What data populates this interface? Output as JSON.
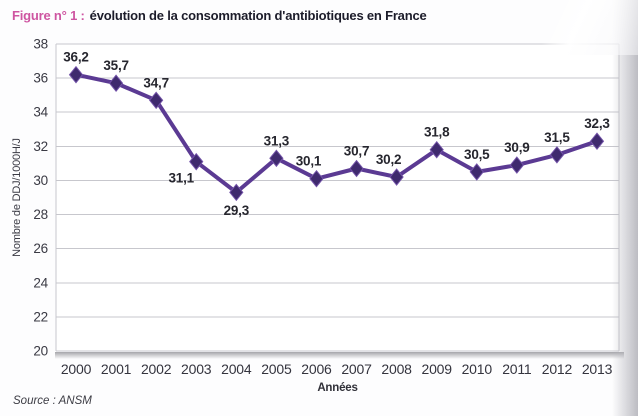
{
  "page": {
    "figure_label": "Figure n° 1 :",
    "figure_title": "évolution de la consommation d'antibiotiques en France",
    "source": "Source : ANSM"
  },
  "chart_data": {
    "type": "line",
    "title": "Figure n° 1 : évolution de la consommation d'antibiotiques en France",
    "xlabel": "Années",
    "ylabel": "Nombre de DDJ/1000H/J",
    "categories": [
      "2000",
      "2001",
      "2002",
      "2003",
      "2004",
      "2005",
      "2006",
      "2007",
      "2008",
      "2009",
      "2010",
      "2011",
      "2012",
      "2013"
    ],
    "values": [
      36.2,
      35.7,
      34.7,
      31.1,
      29.3,
      31.3,
      30.1,
      30.7,
      30.2,
      31.8,
      30.5,
      30.9,
      31.5,
      32.3
    ],
    "point_labels": [
      "36,2",
      "35,7",
      "34,7",
      "31,1",
      "29,3",
      "31,3",
      "30,1",
      "30,7",
      "30,2",
      "31,8",
      "30,5",
      "30,9",
      "31,5",
      "32,3"
    ],
    "label_positions": [
      "above",
      "above",
      "above",
      "below-left",
      "below",
      "above",
      "above-left",
      "above",
      "above-left",
      "above",
      "above",
      "above",
      "above",
      "above"
    ],
    "ylim": [
      20,
      38
    ],
    "ytick_step": 2,
    "grid": "horizontal-major",
    "legend": "none",
    "decimal_separator": ",",
    "colors": {
      "line": "#5b3a93",
      "marker_fill": "#3f2a6e",
      "marker_stroke": "#7252a8",
      "grid_line": "#c7c7cd",
      "tick_text": "#3a3a44",
      "data_label_text": "#26262e",
      "caption_accent": "#ce55a1",
      "caption_text": "#1c1c2a"
    }
  }
}
